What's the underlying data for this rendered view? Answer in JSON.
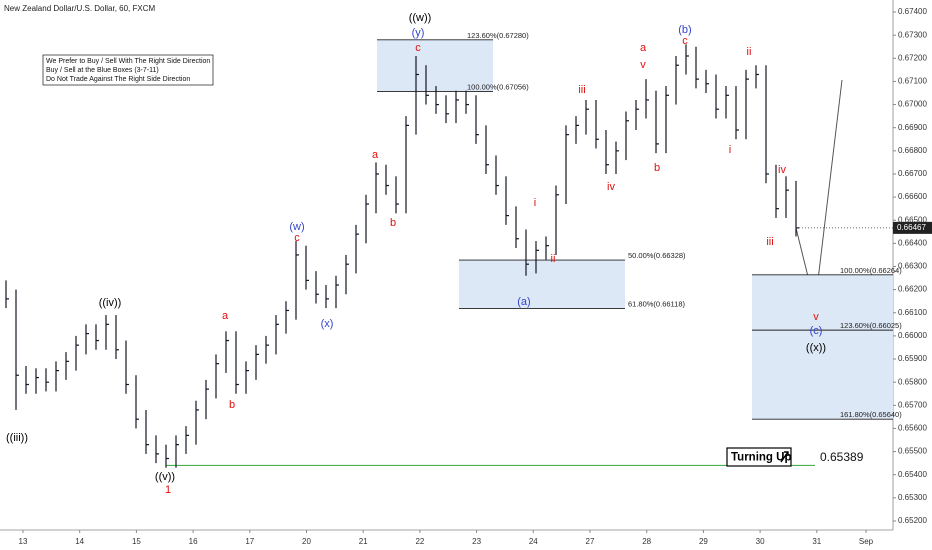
{
  "chart_data": {
    "type": "ohlc",
    "title": "New Zealand Dollar/U.S. Dollar, 60, FXCM",
    "note": [
      "We Prefer to Buy / Sell With The Right Side Direction",
      "Buy / Sell at the Blue Boxes (3-7-11)",
      "Do Not Trade Against The Right Side Direction"
    ],
    "high": [
      0.6624,
      0.662,
      0.6587,
      0.6586,
      0.6586,
      0.6589,
      0.6593,
      0.66,
      0.6605,
      0.6605,
      0.6609,
      0.6609,
      0.6598,
      0.6583,
      0.6568,
      0.6557,
      0.6553,
      0.6557,
      0.6561,
      0.6572,
      0.6581,
      0.6592,
      0.6602,
      0.6602,
      0.6589,
      0.6596,
      0.66,
      0.6609,
      0.6615,
      0.6641,
      0.6639,
      0.6628,
      0.6622,
      0.6626,
      0.6635,
      0.6648,
      0.6661,
      0.6675,
      0.6674,
      0.6669,
      0.6695,
      0.6721,
      0.6717,
      0.6708,
      0.6704,
      0.6706,
      0.6706,
      0.6704,
      0.6691,
      0.6678,
      0.6669,
      0.6656,
      0.6646,
      0.6641,
      0.6643,
      0.6665,
      0.6691,
      0.6695,
      0.6702,
      0.6702,
      0.6689,
      0.6684,
      0.6697,
      0.6702,
      0.6711,
      0.6706,
      0.6708,
      0.6721,
      0.6726,
      0.6725,
      0.6715,
      0.6713,
      0.6708,
      0.6708,
      0.6715,
      0.6717,
      0.6717,
      0.6674,
      0.6669,
      0.6667
    ],
    "low": [
      0.6612,
      0.6568,
      0.6575,
      0.6575,
      0.6576,
      0.6576,
      0.6581,
      0.6585,
      0.6592,
      0.6594,
      0.6594,
      0.659,
      0.6575,
      0.656,
      0.6549,
      0.6545,
      0.6543,
      0.6543,
      0.6549,
      0.6553,
      0.6564,
      0.6573,
      0.6584,
      0.6575,
      0.6575,
      0.6581,
      0.6588,
      0.6592,
      0.6601,
      0.6607,
      0.662,
      0.6614,
      0.6612,
      0.6612,
      0.6618,
      0.6627,
      0.664,
      0.6653,
      0.6661,
      0.6653,
      0.6653,
      0.6687,
      0.67,
      0.6696,
      0.6692,
      0.6692,
      0.6696,
      0.6683,
      0.667,
      0.6661,
      0.6648,
      0.6638,
      0.6626,
      0.6627,
      0.6633,
      0.6635,
      0.6657,
      0.6683,
      0.6687,
      0.6681,
      0.667,
      0.667,
      0.6676,
      0.6689,
      0.6694,
      0.6679,
      0.6679,
      0.67,
      0.6713,
      0.6707,
      0.6705,
      0.6694,
      0.6694,
      0.6685,
      0.6685,
      0.6707,
      0.6666,
      0.6651,
      0.6651,
      0.6643
    ],
    "close": [
      0.6616,
      0.6583,
      0.6579,
      0.6582,
      0.658,
      0.6585,
      0.6589,
      0.6596,
      0.6601,
      0.6598,
      0.6605,
      0.6594,
      0.6579,
      0.6564,
      0.6553,
      0.6549,
      0.6547,
      0.6553,
      0.6557,
      0.6568,
      0.6577,
      0.6588,
      0.6598,
      0.6579,
      0.6585,
      0.6592,
      0.6596,
      0.6605,
      0.6611,
      0.6635,
      0.6624,
      0.6618,
      0.6616,
      0.6622,
      0.6631,
      0.6644,
      0.6657,
      0.667,
      0.6665,
      0.6657,
      0.6691,
      0.6713,
      0.6704,
      0.67,
      0.6696,
      0.6702,
      0.67,
      0.6687,
      0.6674,
      0.6665,
      0.6652,
      0.6642,
      0.6631,
      0.6637,
      0.6639,
      0.6661,
      0.6687,
      0.6691,
      0.6698,
      0.6685,
      0.6674,
      0.668,
      0.6693,
      0.6698,
      0.6702,
      0.6683,
      0.6704,
      0.6717,
      0.6721,
      0.6711,
      0.6709,
      0.6698,
      0.6704,
      0.6689,
      0.6711,
      0.6713,
      0.667,
      0.6655,
      0.6663,
      0.66467
    ],
    "color": "#131722",
    "ylim": [
      0.65161,
      0.67452
    ],
    "yticks": [
      {
        "value": 0.674,
        "label": "0.67400"
      },
      {
        "value": 0.673,
        "label": "0.67300"
      },
      {
        "value": 0.672,
        "label": "0.67200"
      },
      {
        "value": 0.671,
        "label": "0.67100"
      },
      {
        "value": 0.67,
        "label": "0.67000"
      },
      {
        "value": 0.669,
        "label": "0.66900"
      },
      {
        "value": 0.668,
        "label": "0.66800"
      },
      {
        "value": 0.667,
        "label": "0.66700"
      },
      {
        "value": 0.666,
        "label": "0.66600"
      },
      {
        "value": 0.665,
        "label": "0.66500"
      },
      {
        "value": 0.664,
        "label": "0.66400"
      },
      {
        "value": 0.663,
        "label": "0.66300"
      },
      {
        "value": 0.662,
        "label": "0.66200"
      },
      {
        "value": 0.661,
        "label": "0.66100"
      },
      {
        "value": 0.66,
        "label": "0.66000"
      },
      {
        "value": 0.659,
        "label": "0.65900"
      },
      {
        "value": 0.658,
        "label": "0.65800"
      },
      {
        "value": 0.657,
        "label": "0.65700"
      },
      {
        "value": 0.656,
        "label": "0.65600"
      },
      {
        "value": 0.655,
        "label": "0.65500"
      },
      {
        "value": 0.654,
        "label": "0.65400"
      },
      {
        "value": 0.653,
        "label": "0.65300"
      },
      {
        "value": 0.652,
        "label": "0.65200"
      }
    ],
    "xtick_labels": [
      "13",
      "14",
      "15",
      "16",
      "17",
      "20",
      "21",
      "22",
      "23",
      "24",
      "27",
      "28",
      "29",
      "30",
      "31",
      "Sep"
    ],
    "last_price": {
      "value": 0.66467,
      "label": "0.66467"
    },
    "fib_boxes": [
      {
        "levels": [
          0.6728,
          0.67056
        ],
        "labels": [
          "123.60%(0.67280)",
          "100.00%(0.67056)"
        ]
      },
      {
        "levels": [
          0.66328,
          0.66118
        ],
        "labels": [
          "50.00%(0.66328)",
          "61.80%(0.66118)"
        ]
      },
      {
        "levels": [
          0.66264,
          0.66025,
          0.6564
        ],
        "labels": [
          "100.00%(0.66264)",
          "123.60%(0.66025)",
          "161.80%(0.65640)"
        ]
      }
    ],
    "support_line": 0.6544,
    "support_color": "#4caf50",
    "callout": {
      "text": "Turning Up",
      "price": "0.65389"
    },
    "annotations": [
      {
        "text": "((w))",
        "color": "#000"
      },
      {
        "text": "(y)",
        "color": "#3344cc"
      },
      {
        "text": "c",
        "color": "#e01010"
      },
      {
        "text": "(b)",
        "color": "#3344cc"
      },
      {
        "text": "c",
        "color": "#e01010"
      },
      {
        "text": "a",
        "color": "#e01010"
      },
      {
        "text": "v",
        "color": "#e01010"
      },
      {
        "text": "iii",
        "color": "#e01010"
      },
      {
        "text": "ii",
        "color": "#e01010"
      },
      {
        "text": "i",
        "color": "#e01010"
      },
      {
        "text": "iv",
        "color": "#e01010"
      },
      {
        "text": "b",
        "color": "#e01010"
      },
      {
        "text": "a",
        "color": "#e01010"
      },
      {
        "text": "b",
        "color": "#e01010"
      },
      {
        "text": "(w)",
        "color": "#3344cc"
      },
      {
        "text": "c",
        "color": "#e01010"
      },
      {
        "text": "(x)",
        "color": "#3344cc"
      },
      {
        "text": "((iv))",
        "color": "#000"
      },
      {
        "text": "a",
        "color": "#e01010"
      },
      {
        "text": "b",
        "color": "#e01010"
      },
      {
        "text": "((iii))",
        "color": "#000"
      },
      {
        "text": "((v))",
        "color": "#000"
      },
      {
        "text": "1",
        "color": "#e01010"
      },
      {
        "text": "i",
        "color": "#e01010"
      },
      {
        "text": "ii",
        "color": "#e01010"
      },
      {
        "text": "(a)",
        "color": "#3344cc"
      },
      {
        "text": "iv",
        "color": "#e01010"
      },
      {
        "text": "iii",
        "color": "#e01010"
      },
      {
        "text": "v",
        "color": "#e01010"
      },
      {
        "text": "(c)",
        "color": "#3344cc"
      },
      {
        "text": "((x))",
        "color": "#000"
      }
    ]
  }
}
